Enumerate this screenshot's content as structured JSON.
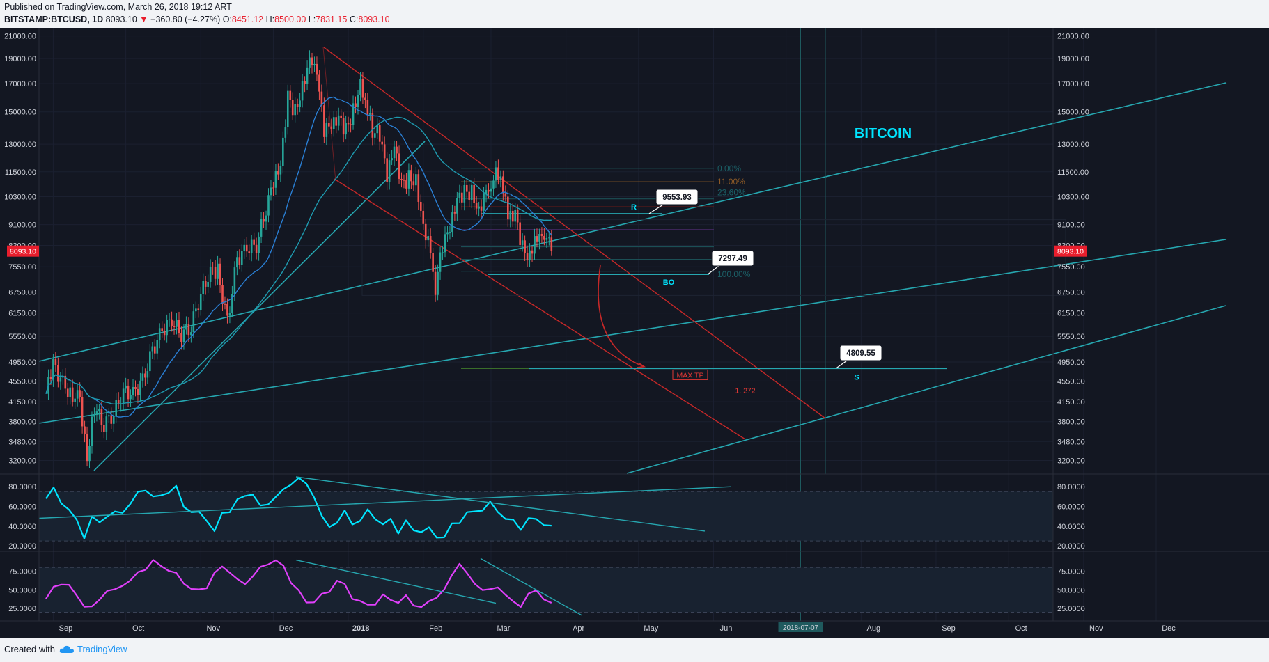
{
  "header": {
    "published": "Published on TradingView.com, March 26, 2018 19:12 ART",
    "symbol": "BITSTAMP:BTCUSD, 1D",
    "last": "8093.10",
    "change": "−360.80 (−4.27%)",
    "o_label": "O:",
    "o": "8451.12",
    "h_label": "H:",
    "h": "8500.00",
    "l_label": "L:",
    "l": "7831.15",
    "c_label": "C:",
    "c": "8093.10"
  },
  "footer": {
    "created": "Created with",
    "brand": "TradingView"
  },
  "colors": {
    "background": "#131722",
    "up": "#26a69a",
    "down": "#ef5350",
    "teal": "#26a7b0",
    "red_line": "#c62828",
    "osc1": "#00e5ff",
    "osc2": "#e040fb",
    "title": "#00e5ff",
    "price_tag": "#e91e2d"
  },
  "chart_data": [
    {
      "type": "line",
      "title": "BITCOIN",
      "subtype": "candlestick",
      "yscale": "log",
      "ylim": [
        3050,
        21500
      ],
      "x_tick_labels": [
        "Sep",
        "Oct",
        "Nov",
        "Dec",
        "2018",
        "Feb",
        "Mar",
        "Apr",
        "May",
        "Jun",
        "Jul",
        "Aug",
        "Sep",
        "Oct",
        "Nov",
        "Dec"
      ],
      "x_tick_dates": [
        "2017-09-01",
        "2017-10-01",
        "2017-11-01",
        "2017-12-01",
        "2018-01-01",
        "2018-02-01",
        "2018-03-01",
        "2018-04-01",
        "2018-05-01",
        "2018-06-01",
        "2018-07-01",
        "2018-08-01",
        "2018-09-01",
        "2018-10-01",
        "2018-11-01",
        "2018-12-01"
      ],
      "x_cursor_label": "2018-07-07",
      "y_ticks": [
        21000,
        19000,
        17000,
        15000,
        13000,
        11500,
        10300,
        9100,
        8300,
        7550,
        6750,
        6150,
        5550,
        4950,
        4550,
        4150,
        3800,
        3480,
        3200
      ],
      "y_tick_labels": [
        "21000.00",
        "19000.00",
        "17000.00",
        "15000.00",
        "13000.00",
        "11500.00",
        "10300.00",
        "9100.00",
        "8300.00",
        "7550.00",
        "6750.00",
        "6150.00",
        "5550.00",
        "4950.00",
        "4550.00",
        "4150.00",
        "3800.00",
        "3480.00",
        "3200.00"
      ],
      "last_price_label": "8093.10",
      "price_path": [
        [
          "2017-08-29",
          4300
        ],
        [
          "2017-09-01",
          4900
        ],
        [
          "2017-09-05",
          4500
        ],
        [
          "2017-09-08",
          4300
        ],
        [
          "2017-09-12",
          4200
        ],
        [
          "2017-09-15",
          3250
        ],
        [
          "2017-09-18",
          4050
        ],
        [
          "2017-09-22",
          3750
        ],
        [
          "2017-09-26",
          3950
        ],
        [
          "2017-09-30",
          4350
        ],
        [
          "2017-10-04",
          4300
        ],
        [
          "2017-10-08",
          4550
        ],
        [
          "2017-10-12",
          5200
        ],
        [
          "2017-10-16",
          5700
        ],
        [
          "2017-10-20",
          5950
        ],
        [
          "2017-10-24",
          5600
        ],
        [
          "2017-10-28",
          5800
        ],
        [
          "2017-11-01",
          6700
        ],
        [
          "2017-11-05",
          7400
        ],
        [
          "2017-11-08",
          7400
        ],
        [
          "2017-11-12",
          5900
        ],
        [
          "2017-11-16",
          7800
        ],
        [
          "2017-11-20",
          8200
        ],
        [
          "2017-11-24",
          8300
        ],
        [
          "2017-11-28",
          9800
        ],
        [
          "2017-12-01",
          10900
        ],
        [
          "2017-12-04",
          11700
        ],
        [
          "2017-12-07",
          16000
        ],
        [
          "2017-12-10",
          15000
        ],
        [
          "2017-12-13",
          16800
        ],
        [
          "2017-12-16",
          19100
        ],
        [
          "2017-12-18",
          19000
        ],
        [
          "2017-12-20",
          17000
        ],
        [
          "2017-12-22",
          13800
        ],
        [
          "2017-12-25",
          14000
        ],
        [
          "2017-12-28",
          14500
        ],
        [
          "2017-12-31",
          13800
        ],
        [
          "2018-01-03",
          15100
        ],
        [
          "2018-01-06",
          17100
        ],
        [
          "2018-01-08",
          16000
        ],
        [
          "2018-01-11",
          13800
        ],
        [
          "2018-01-14",
          13600
        ],
        [
          "2018-01-17",
          11200
        ],
        [
          "2018-01-20",
          12800
        ],
        [
          "2018-01-23",
          10800
        ],
        [
          "2018-01-26",
          11200
        ],
        [
          "2018-01-29",
          11100
        ],
        [
          "2018-02-01",
          9100
        ],
        [
          "2018-02-04",
          8200
        ],
        [
          "2018-02-06",
          6900
        ],
        [
          "2018-02-09",
          8300
        ],
        [
          "2018-02-12",
          8900
        ],
        [
          "2018-02-15",
          10100
        ],
        [
          "2018-02-18",
          10500
        ],
        [
          "2018-02-21",
          10500
        ],
        [
          "2018-02-24",
          9700
        ],
        [
          "2018-02-27",
          10700
        ],
        [
          "2018-03-01",
          11000
        ],
        [
          "2018-03-04",
          11500
        ],
        [
          "2018-03-06",
          10700
        ],
        [
          "2018-03-08",
          9300
        ],
        [
          "2018-03-11",
          9500
        ],
        [
          "2018-03-14",
          8200
        ],
        [
          "2018-03-17",
          7900
        ],
        [
          "2018-03-19",
          8600
        ],
        [
          "2018-03-21",
          8900
        ],
        [
          "2018-03-23",
          8800
        ],
        [
          "2018-03-26",
          8093
        ]
      ],
      "annotations": [
        {
          "text": "9553.93",
          "kind": "callout"
        },
        {
          "text": "7297.49",
          "kind": "callout"
        },
        {
          "text": "4809.55",
          "kind": "callout"
        },
        {
          "text": "R"
        },
        {
          "text": "BO"
        },
        {
          "text": "S"
        },
        {
          "text": "MAX TP"
        },
        {
          "text": "1. 272"
        },
        {
          "text": "0.00%"
        },
        {
          "text": "11.00%"
        },
        {
          "text": "23.60%"
        },
        {
          "text": "100.00%"
        }
      ]
    },
    {
      "type": "line",
      "name": "oscillator-1",
      "ylim": [
        18,
        90
      ],
      "y_tick_labels": [
        "80.0000",
        "60.0000",
        "40.0000",
        "20.0000"
      ],
      "y_ticks": [
        80,
        60,
        40,
        20
      ],
      "band": [
        25,
        75
      ],
      "values": [
        68,
        77,
        66,
        55,
        46,
        30,
        47,
        45,
        51,
        52,
        56,
        62,
        73,
        79,
        68,
        71,
        76,
        78,
        61,
        55,
        52,
        48,
        34,
        52,
        57,
        65,
        71,
        74,
        58,
        64,
        70,
        75,
        85,
        90,
        82,
        72,
        48,
        40,
        45,
        53,
        44,
        45,
        55,
        50,
        40,
        47,
        35,
        43,
        37,
        35,
        36,
        31,
        28,
        41,
        46,
        52,
        55,
        58,
        62,
        56,
        48,
        44,
        39,
        47,
        46,
        44,
        38
      ]
    },
    {
      "type": "line",
      "name": "oscillator-2",
      "ylim": [
        12,
        98
      ],
      "y_tick_labels": [
        "75.0000",
        "50.0000",
        "25.0000"
      ],
      "y_ticks": [
        75,
        50,
        25
      ],
      "band": [
        20,
        80
      ],
      "values": [
        38,
        52,
        60,
        55,
        42,
        30,
        25,
        38,
        50,
        48,
        58,
        62,
        72,
        80,
        88,
        82,
        78,
        70,
        60,
        52,
        48,
        55,
        72,
        80,
        76,
        62,
        58,
        70,
        78,
        86,
        90,
        80,
        62,
        48,
        32,
        36,
        42,
        48,
        64,
        55,
        40,
        35,
        28,
        33,
        42,
        36,
        35,
        40,
        30,
        28,
        32,
        42,
        50,
        68,
        88,
        70,
        58,
        52,
        48,
        55,
        44,
        32,
        30,
        44,
        48,
        40,
        30
      ]
    }
  ]
}
